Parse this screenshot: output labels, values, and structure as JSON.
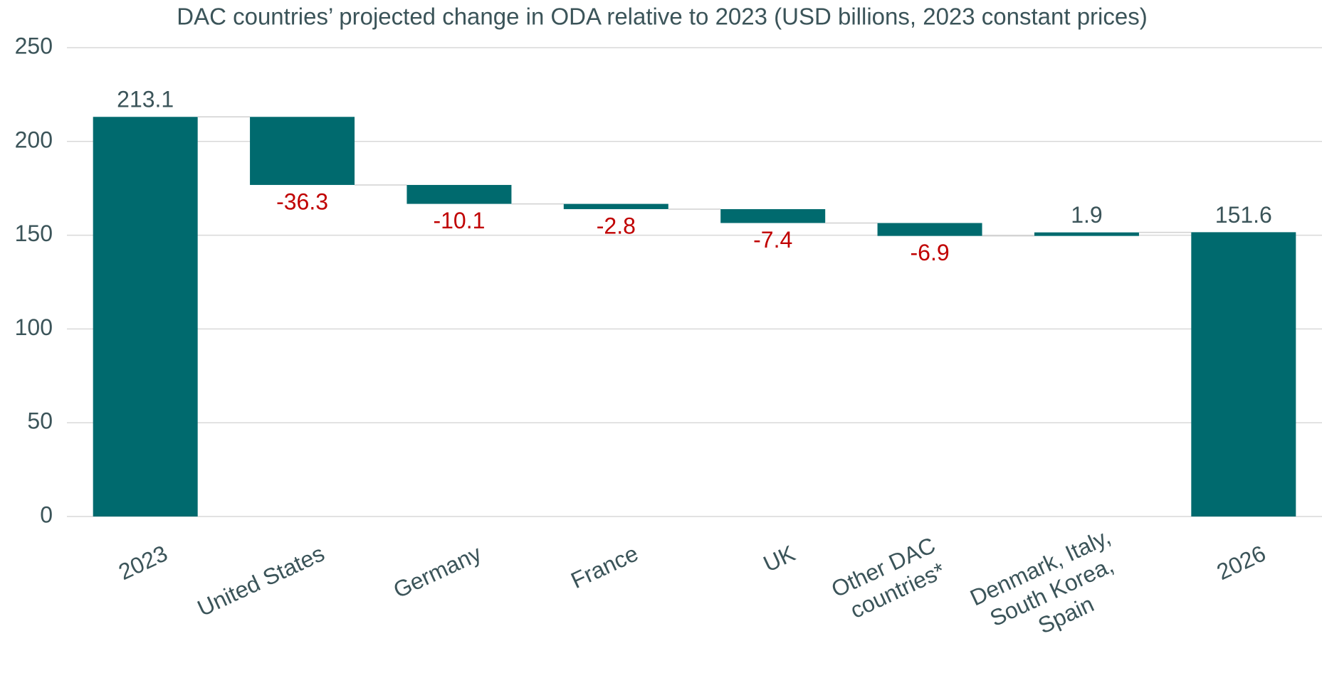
{
  "chart_data": {
    "type": "waterfall",
    "title": "DAC countries’ projected change in ODA relative to 2023 (USD billions, 2023 constant prices)",
    "categories": [
      "2023",
      "United States",
      "Germany",
      "France",
      "UK",
      "Other DAC countries*",
      "Denmark, Italy, South Korea, Spain",
      "2026"
    ],
    "values": [
      213.1,
      -36.3,
      -10.1,
      -2.8,
      -7.4,
      -6.9,
      1.9,
      151.6
    ],
    "is_total": [
      true,
      false,
      false,
      false,
      false,
      false,
      false,
      true
    ],
    "color": "#006a6e",
    "negative_label_color": "#c00000",
    "positive_label_color": "#3b5459",
    "ylim": [
      0,
      250
    ],
    "yticks": [
      0,
      50,
      100,
      150,
      200,
      250
    ],
    "grid": true
  }
}
